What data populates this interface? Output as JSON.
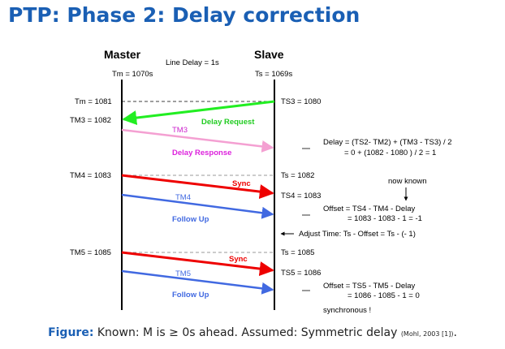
{
  "title": "PTP: Phase 2: Delay correction",
  "master_header": "Master",
  "slave_header": "Slave",
  "line_delay": "Line Delay = 1s",
  "tm_initial": "Tm = 1070s",
  "ts_initial": "Ts = 1069s",
  "left_labels": [
    "Tm = 1081",
    "TM3 = 1082",
    "TM4 = 1083",
    "TM5 = 1085"
  ],
  "right_labels": [
    "TS3 = 1080",
    "Ts = 1082",
    "TS4 = 1083",
    "Ts = 1085",
    "TS5 = 1086"
  ],
  "messages": {
    "delay_request": "Delay Request",
    "tm3": "TM3",
    "delay_response": "Delay Response",
    "sync1": "Sync",
    "tm4": "TM4",
    "follow_up1": "Follow Up",
    "sync2": "Sync",
    "tm5": "TM5",
    "follow_up2": "Follow Up"
  },
  "notes": {
    "delay_line1": "Delay = (TS2- TM2) + (TM3 - TS3) / 2",
    "delay_line2": "= 0 + (1082 - 1080 ) / 2 = 1",
    "now_known": "now known",
    "offset1_line1": "Offset = TS4 - TM4 - Delay",
    "offset1_line2": "= 1083 - 1083 - 1 = -1",
    "adjust": "Adjust Time: Ts - Offset = Ts - (- 1)",
    "offset2_line1": "Offset = TS5 - TM5 - Delay",
    "offset2_line2": "= 1086 - 1085 - 1 = 0",
    "synchronous": "synchronous !"
  },
  "caption": {
    "label": "Figure:",
    "text": " Known: M is ≥ 0s ahead. Assumed: Symmetric delay ",
    "ref": "(Mohl, 2003 [1])",
    "end": "."
  },
  "colors": {
    "title": "#1a5fb4",
    "delay_request": "#22ee22",
    "delay_response": "#f4a0d2",
    "sync": "#ee0000",
    "follow_up": "#4169e1",
    "delay_request_text": "#22cc22",
    "delay_response_text": "#dd22dd",
    "tm_text": "#cc22cc"
  }
}
